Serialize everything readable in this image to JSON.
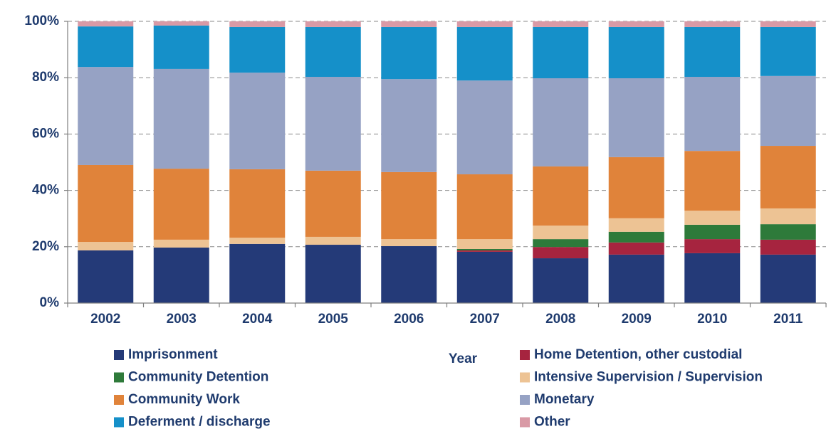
{
  "chart_data": {
    "type": "stacked_bar",
    "x_label": "Year",
    "categories": [
      "2002",
      "2003",
      "2004",
      "2005",
      "2006",
      "2007",
      "2008",
      "2009",
      "2010",
      "2011"
    ],
    "series": [
      {
        "name": "Imprisonment",
        "color": "#243a78",
        "values": [
          18.7,
          19.7,
          21.0,
          20.7,
          20.2,
          18.2,
          15.9,
          17.2,
          17.7,
          17.2
        ]
      },
      {
        "name": "Home Detention, other custodial",
        "color": "#a6243f",
        "values": [
          0,
          0,
          0,
          0,
          0,
          0.5,
          4.0,
          4.3,
          5.0,
          5.3
        ]
      },
      {
        "name": "Community Detention",
        "color": "#2e7a3a",
        "values": [
          0,
          0,
          0,
          0,
          0,
          0.5,
          2.8,
          3.8,
          5.1,
          5.5
        ]
      },
      {
        "name": "Intensive Supervision / Supervision",
        "color": "#edc394",
        "values": [
          3.0,
          2.8,
          2.2,
          2.8,
          2.5,
          3.5,
          4.8,
          4.8,
          5.0,
          5.6
        ]
      },
      {
        "name": "Community Work",
        "color": "#e0833a",
        "values": [
          27.3,
          25.2,
          24.3,
          23.5,
          23.8,
          23.0,
          21.0,
          21.7,
          21.2,
          22.2
        ]
      },
      {
        "name": "Monetary",
        "color": "#96a2c4",
        "values": [
          34.8,
          35.4,
          34.3,
          33.3,
          33.0,
          33.3,
          31.3,
          28.0,
          26.3,
          24.8
        ]
      },
      {
        "name": "Deferment / discharge",
        "color": "#1590c9",
        "values": [
          14.4,
          15.4,
          16.2,
          17.7,
          18.5,
          19.0,
          18.2,
          18.2,
          17.7,
          17.4
        ]
      },
      {
        "name": "Other",
        "color": "#d99aa6",
        "values": [
          1.8,
          1.5,
          2.0,
          2.0,
          2.0,
          2.0,
          2.0,
          2.0,
          2.0,
          2.0
        ]
      }
    ],
    "ylim": [
      0,
      100
    ],
    "yticks": [
      {
        "value": 0,
        "label": "0%"
      },
      {
        "value": 20,
        "label": "20%"
      },
      {
        "value": 40,
        "label": "40%"
      },
      {
        "value": 60,
        "label": "60%"
      },
      {
        "value": 80,
        "label": "80%"
      },
      {
        "value": 100,
        "label": "100%"
      }
    ],
    "grid": true
  }
}
